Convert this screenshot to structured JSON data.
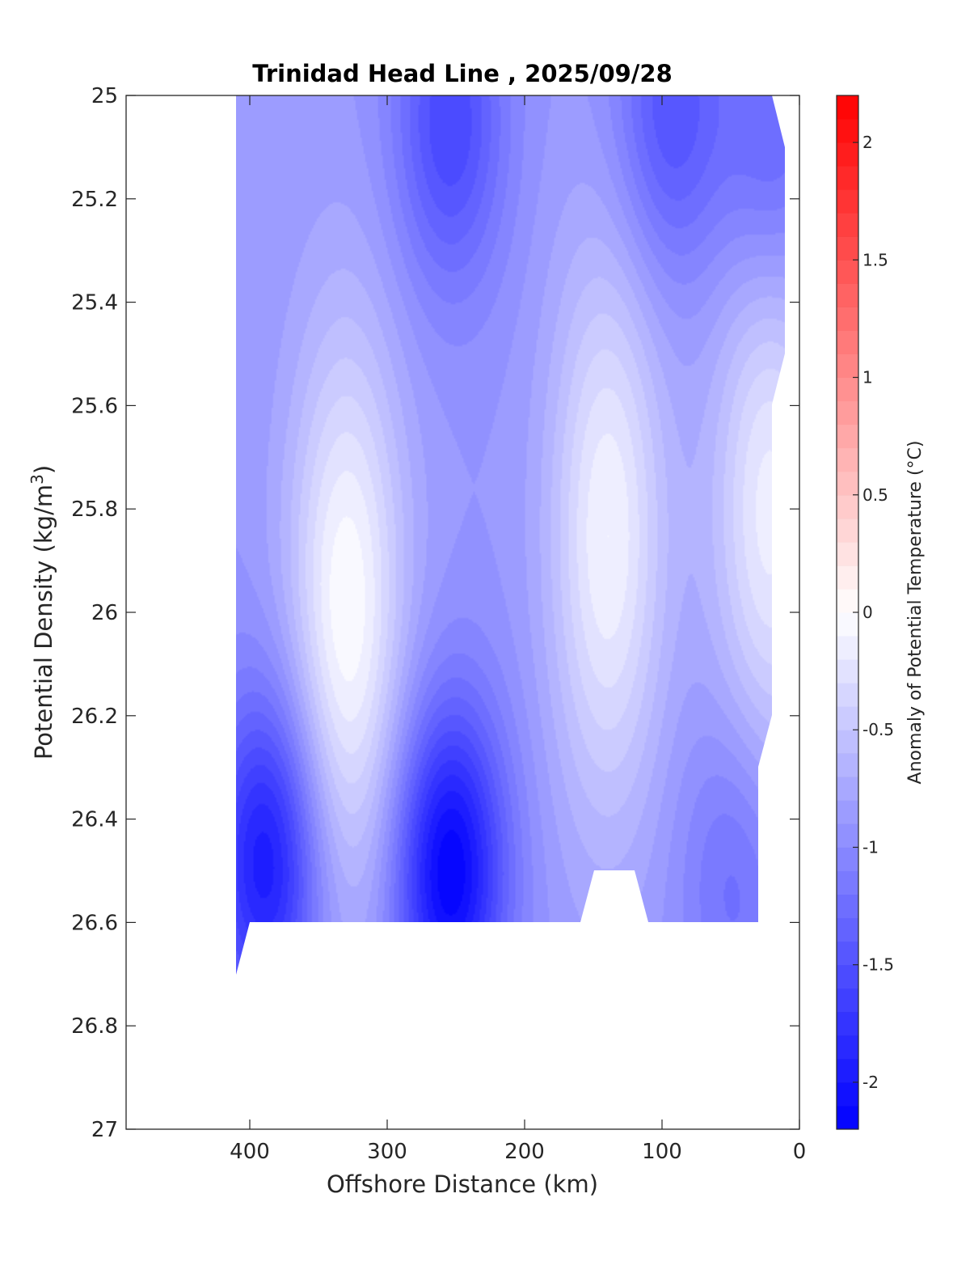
{
  "chart_data": {
    "type": "heatmap",
    "subtype": "filled-contour",
    "title": "Trinidad Head Line , 2025/09/28",
    "xlabel": "Offshore Distance (km)",
    "ylabel_main": "Potential Density (kg/m",
    "ylabel_sup": "3",
    "ylabel_close": ")",
    "xlim": [
      490,
      0
    ],
    "x_reversed": true,
    "ylim": [
      25,
      27
    ],
    "y_reversed": true,
    "x_ticks": [
      400,
      300,
      200,
      100,
      0
    ],
    "y_ticks": [
      25,
      25.2,
      25.4,
      25.6,
      25.8,
      26,
      26.2,
      26.4,
      26.6,
      26.8,
      27
    ],
    "x_tick_labels": [
      "400",
      "300",
      "200",
      "100",
      "0"
    ],
    "y_tick_labels": [
      "25",
      "25.2",
      "25.4",
      "25.6",
      "25.8",
      "26",
      "26.2",
      "26.4",
      "26.6",
      "26.8",
      "27"
    ],
    "colorbar": {
      "label": "Anomaly of Potential Temperature (°C)",
      "range": [
        -2.2,
        2.2
      ],
      "levels_step": 0.1,
      "ticks": [
        2,
        1.5,
        1,
        0.5,
        0,
        -0.5,
        -1,
        -1.5,
        -2
      ],
      "tick_labels": [
        "2",
        "1.5",
        "1",
        "0.5",
        "0",
        "-0.5",
        "-1",
        "-1.5",
        "-2"
      ],
      "colormap": "blue-white-red",
      "color_negative": "#0000ff",
      "color_zero": "#ffffff",
      "color_positive": "#ff0000"
    },
    "data_region": {
      "x_max_offshore": 410,
      "x_min_offshore": 12,
      "y_bottom": 26.6
    },
    "field_features": [
      {
        "kind": "cold-core",
        "x": 388,
        "y": 26.48,
        "value": -2.0
      },
      {
        "kind": "cold-core",
        "x": 255,
        "y": 26.5,
        "value": -2.2
      },
      {
        "kind": "cold-core",
        "x": 255,
        "y": 25.05,
        "value": -1.6
      },
      {
        "kind": "cold-core",
        "x": 95,
        "y": 25.03,
        "value": -1.5
      },
      {
        "kind": "cold-core",
        "x": 20,
        "y": 25.1,
        "value": -1.4
      },
      {
        "kind": "cold-core",
        "x": 45,
        "y": 26.5,
        "value": -1.3
      },
      {
        "kind": "warm-core",
        "x": 330,
        "y": 26.0,
        "value": 0.0
      },
      {
        "kind": "warm-core",
        "x": 140,
        "y": 25.85,
        "value": -0.1
      },
      {
        "kind": "warm-core",
        "x": 22,
        "y": 25.8,
        "value": -0.15
      }
    ],
    "field_background_value": -0.9
  }
}
